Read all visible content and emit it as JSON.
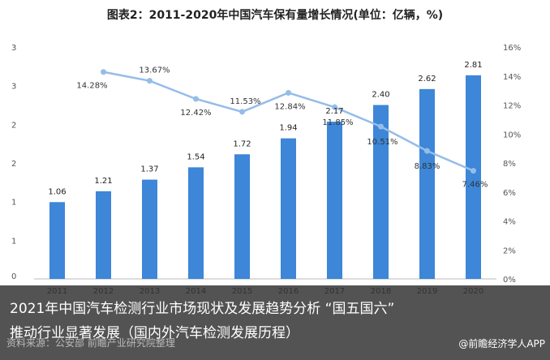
{
  "chart_data": {
    "type": "bar",
    "title": "图表2：2011-2020年中国汽车保有量增长情况(单位：亿辆，%)",
    "categories": [
      "2011",
      "2012",
      "2013",
      "2014",
      "2015",
      "2016",
      "2017",
      "2018",
      "2019",
      "2020"
    ],
    "series": [
      {
        "values": [
          1.06,
          1.21,
          1.37,
          1.54,
          1.72,
          1.94,
          2.17,
          2.4,
          2.62,
          2.81
        ],
        "axis": "left",
        "kind": "bar",
        "color": "#3d86d8"
      },
      {
        "values": [
          null,
          14.28,
          13.67,
          12.42,
          11.53,
          12.84,
          11.85,
          10.51,
          8.83,
          7.46
        ],
        "axis": "right",
        "kind": "line",
        "color": "#94bde8"
      }
    ],
    "bar_labels": [
      "1.06",
      "1.21",
      "1.37",
      "1.54",
      "1.72",
      "1.94",
      "2.17",
      "2.40",
      "2.62",
      "2.81"
    ],
    "line_labels": [
      "",
      "14.28%",
      "13.67%",
      "12.42%",
      "11.53%",
      "12.84%",
      "11.85%",
      "10.51%",
      "8.83%",
      "7.46%"
    ],
    "ylim_left": [
      0,
      3.2
    ],
    "ylim_right": [
      0,
      16
    ],
    "y_left_ticks": [
      "0",
      "1",
      "1",
      "2",
      "2",
      "3",
      "3"
    ],
    "y_right_ticks": [
      "0%",
      "2%",
      "4%",
      "6%",
      "8%",
      "10%",
      "12%",
      "14%",
      "16%"
    ],
    "grid": false,
    "legend": "bottom"
  },
  "caption": {
    "line1": "2021年中国汽车检测行业市场现状及发展趋势分析 “国五国六”",
    "line2": "推动行业显著发展（国内外汽车检测发展历程）"
  },
  "source": "资料来源：公安部 前瞻产业研究院整理",
  "brand": "@前瞻经济学人APP",
  "colors": {
    "bar": "#3d86d8",
    "line": "#94bde8",
    "axis": "#bbbbbb"
  }
}
